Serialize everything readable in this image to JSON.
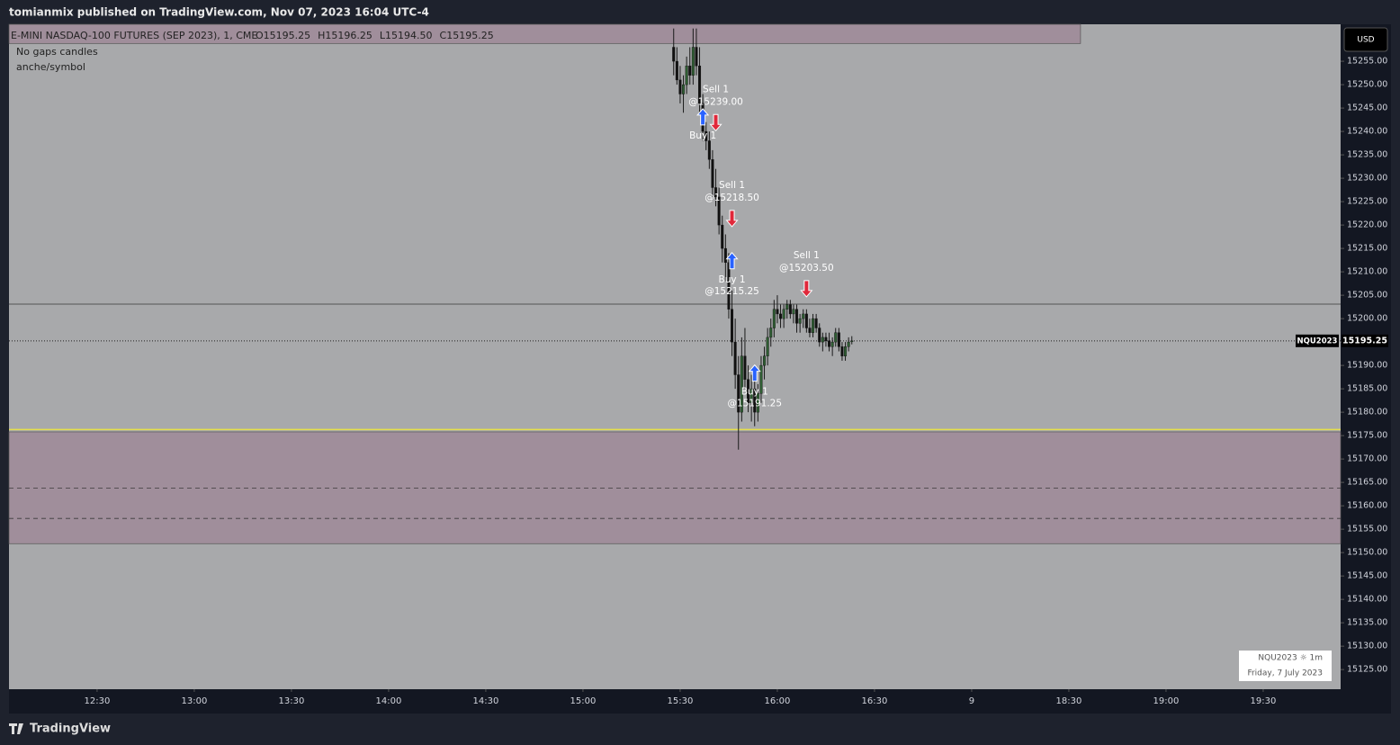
{
  "header": {
    "publisher": "tomianmix published on TradingView.com, Nov 07, 2023 16:04 UTC-4"
  },
  "footer": {
    "brand": "TradingView"
  },
  "chart_data": {
    "type": "candlestick",
    "symbol_line": "E-MINI NASDAQ-100 FUTURES (SEP 2023), 1, CME",
    "ohlc_labels": [
      "O15195.25",
      "H15196.25",
      "L15194.50",
      "C15195.25"
    ],
    "indicators": [
      "No gaps candles",
      "anche/symbol"
    ],
    "currency": "USD",
    "symbol": "NQU2023",
    "last_price": 15195.25,
    "watermark": [
      "NQU2023 ☼ 1m",
      "Friday, 7 July 2023"
    ],
    "colors": {
      "up": "#2f5e33",
      "down": "#111111",
      "wick": "#1a1a1a",
      "zone": "#a08e9b",
      "level": "#3a3a3a",
      "highlight": "#e6e04a"
    },
    "xlim": [
      722.8,
      1133.9
    ],
    "ylim": [
      15120.8,
      15262.9
    ],
    "xticks": [
      {
        "value": 750,
        "label": "12:30"
      },
      {
        "value": 780,
        "label": "13:00"
      },
      {
        "value": 810,
        "label": "13:30"
      },
      {
        "value": 840,
        "label": "14:00"
      },
      {
        "value": 870,
        "label": "14:30"
      },
      {
        "value": 900,
        "label": "15:00"
      },
      {
        "value": 930,
        "label": "15:30"
      },
      {
        "value": 960,
        "label": "16:00"
      },
      {
        "value": 990,
        "label": "16:30"
      },
      {
        "value": 1020,
        "label": "9"
      },
      {
        "value": 1050,
        "label": "18:30"
      },
      {
        "value": 1080,
        "label": "19:00"
      },
      {
        "value": 1110,
        "label": "19:30"
      }
    ],
    "yticks": [
      {
        "value": 15125,
        "label": "15125.00"
      },
      {
        "value": 15130,
        "label": "15130.00"
      },
      {
        "value": 15135,
        "label": "15135.00"
      },
      {
        "value": 15140,
        "label": "15140.00"
      },
      {
        "value": 15145,
        "label": "15145.00"
      },
      {
        "value": 15150,
        "label": "15150.00"
      },
      {
        "value": 15155,
        "label": "15155.00"
      },
      {
        "value": 15160,
        "label": "15160.00"
      },
      {
        "value": 15165,
        "label": "15165.00"
      },
      {
        "value": 15170,
        "label": "15170.00"
      },
      {
        "value": 15175,
        "label": "15175.00"
      },
      {
        "value": 15180,
        "label": "15180.00"
      },
      {
        "value": 15185,
        "label": "15185.00"
      },
      {
        "value": 15190,
        "label": "15190.00"
      },
      {
        "value": 15195,
        "label": "15195.00"
      },
      {
        "value": 15200,
        "label": "15200.00"
      },
      {
        "value": 15205,
        "label": "15205.00"
      },
      {
        "value": 15210,
        "label": "15210.00"
      },
      {
        "value": 15215,
        "label": "15215.00"
      },
      {
        "value": 15220,
        "label": "15220.00"
      },
      {
        "value": 15225,
        "label": "15225.00"
      },
      {
        "value": 15230,
        "label": "15230.00"
      },
      {
        "value": 15235,
        "label": "15235.00"
      },
      {
        "value": 15240,
        "label": "15240.00"
      },
      {
        "value": 15245,
        "label": "15245.00"
      },
      {
        "value": 15250,
        "label": "15250.00"
      },
      {
        "value": 15255,
        "label": "15255.00"
      }
    ],
    "zones": [
      {
        "from": 15258.8,
        "to": 15262.9,
        "xend": 1053.6
      },
      {
        "from": 15151.9,
        "to": 15175.8,
        "xend": 1133.9
      }
    ],
    "levels": [
      {
        "value": 15203.1,
        "style": "solid"
      },
      {
        "value": 15176.3,
        "style": "highlight"
      },
      {
        "value": 15163.8,
        "style": "dashed"
      },
      {
        "value": 15157.3,
        "style": "dashed"
      }
    ],
    "x": [
      928,
      929,
      930,
      931,
      932,
      933,
      934,
      935,
      936,
      937,
      938,
      939,
      940,
      941,
      942,
      943,
      944,
      945,
      946,
      947,
      948,
      949,
      950,
      951,
      952,
      953,
      954,
      955,
      956,
      957,
      958,
      959,
      960,
      961,
      962,
      963,
      964,
      965,
      966,
      967,
      968,
      969,
      970,
      971,
      972,
      973,
      974,
      975,
      976,
      977,
      978,
      979,
      980,
      981,
      982,
      983
    ],
    "open": [
      15258,
      15255,
      15251,
      15248,
      15250,
      15254,
      15252,
      15258,
      15254,
      15246,
      15240,
      15238,
      15234,
      15228,
      15226,
      15220,
      15215,
      15212,
      15202,
      15195,
      15188,
      15180,
      15192,
      15187,
      15182,
      15185,
      15180,
      15184,
      15190,
      15192,
      15196,
      15198,
      15202,
      15201,
      15200,
      15202,
      15203,
      15201,
      15202,
      15199,
      15200,
      15201,
      15198,
      15197,
      15200,
      15198,
      15195,
      15196,
      15195.25,
      15194,
      15195,
      15197,
      15194,
      15192,
      15194,
      15195.25
    ],
    "high": [
      15262,
      15258,
      15254,
      15252,
      15256,
      15258,
      15262,
      15262,
      15258,
      15248,
      15242,
      15240,
      15236,
      15232,
      15228,
      15222,
      15218,
      15214,
      15206,
      15200,
      15192,
      15196,
      15198,
      15190,
      15188,
      15187,
      15186,
      15192,
      15194,
      15198,
      15200,
      15204,
      15205,
      15203,
      15203,
      15204,
      15204,
      15203,
      15203,
      15201,
      15202,
      15202,
      15200,
      15201,
      15201,
      15199,
      15197,
      15197,
      15197,
      15196,
      15198,
      15198,
      15195,
      15195,
      15196,
      15196.25
    ],
    "low": [
      15252,
      15250,
      15246,
      15244,
      15248,
      15250,
      15250,
      15252,
      15244,
      15238,
      15236,
      15232,
      15226,
      15224,
      15218,
      15212,
      15208,
      15200,
      15192,
      15185,
      15172,
      15178,
      15185,
      15180,
      15178,
      15177,
      15178,
      15182,
      15187,
      15190,
      15194,
      15196,
      15199,
      15198,
      15198,
      15200,
      15200,
      15199,
      15197,
      15197,
      15198,
      15197,
      15196,
      15196,
      15197,
      15194,
      15193,
      15194,
      15193,
      15192,
      15194,
      15193,
      15191,
      15191,
      15193,
      15194.5
    ],
    "close": [
      15255,
      15251,
      15248,
      15250,
      15254,
      15252,
      15258,
      15254,
      15246,
      15240,
      15238,
      15234,
      15228,
      15226,
      15220,
      15215,
      15212,
      15202,
      15195,
      15188,
      15180,
      15192,
      15187,
      15182,
      15185,
      15180,
      15184,
      15190,
      15192,
      15196,
      15198,
      15202,
      15201,
      15200,
      15202,
      15203,
      15201,
      15202,
      15199,
      15200,
      15201,
      15198,
      15197,
      15200,
      15198,
      15195,
      15196,
      15195.25,
      15194,
      15195,
      15197,
      15194,
      15192,
      15194,
      15195,
      15195.25
    ],
    "trades": [
      {
        "side": "buy",
        "x": 937,
        "price": 15246,
        "text": [
          "Buy 1"
        ]
      },
      {
        "side": "sell",
        "x": 941,
        "price": 15239,
        "text": [
          "Sell 1",
          "@15239.00"
        ]
      },
      {
        "side": "sell",
        "x": 946,
        "price": 15218.5,
        "text": [
          "Sell 1",
          "@15218.50"
        ]
      },
      {
        "side": "buy",
        "x": 946,
        "price": 15215.25,
        "text": [
          "Buy 1",
          "@15215.25"
        ]
      },
      {
        "side": "buy",
        "x": 953,
        "price": 15191.25,
        "text": [
          "Buy 1",
          "@15191.25"
        ]
      },
      {
        "side": "sell",
        "x": 969,
        "price": 15203.5,
        "text": [
          "Sell 1",
          "@15203.50"
        ]
      }
    ]
  }
}
